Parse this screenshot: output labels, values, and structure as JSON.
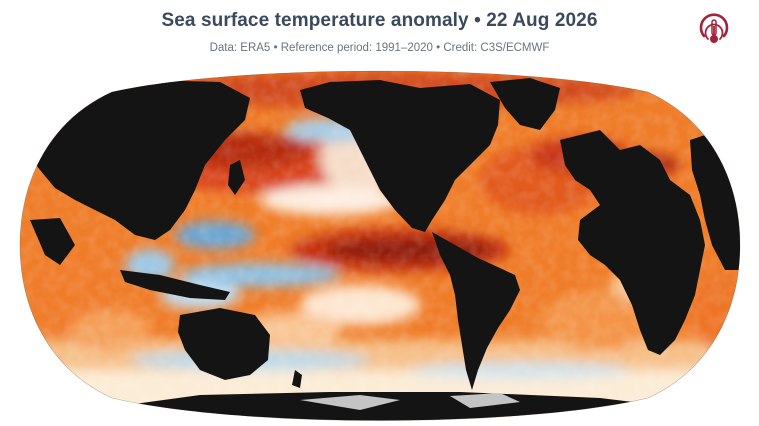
{
  "header": {
    "title": "Sea surface temperature anomaly • 22 Aug 2026",
    "subtitle": "Data: ERA5 • Reference period: 1991–2020 • Credit: C3S/ECMWF"
  },
  "logo": {
    "icon": "c3s-thermometer-logo-icon",
    "color": "#a3223a"
  },
  "map": {
    "projection": "robinson",
    "colors": {
      "land": "#141414",
      "ice": "#bdbdbd",
      "hot_extreme": "#7d0d0d",
      "hot_strong": "#c1280f",
      "warm": "#ec6a1c",
      "mild": "#f8a95a",
      "neutral": "#fbf0dc",
      "cool": "#9cc9e6",
      "cold": "#3b7fc2"
    }
  }
}
